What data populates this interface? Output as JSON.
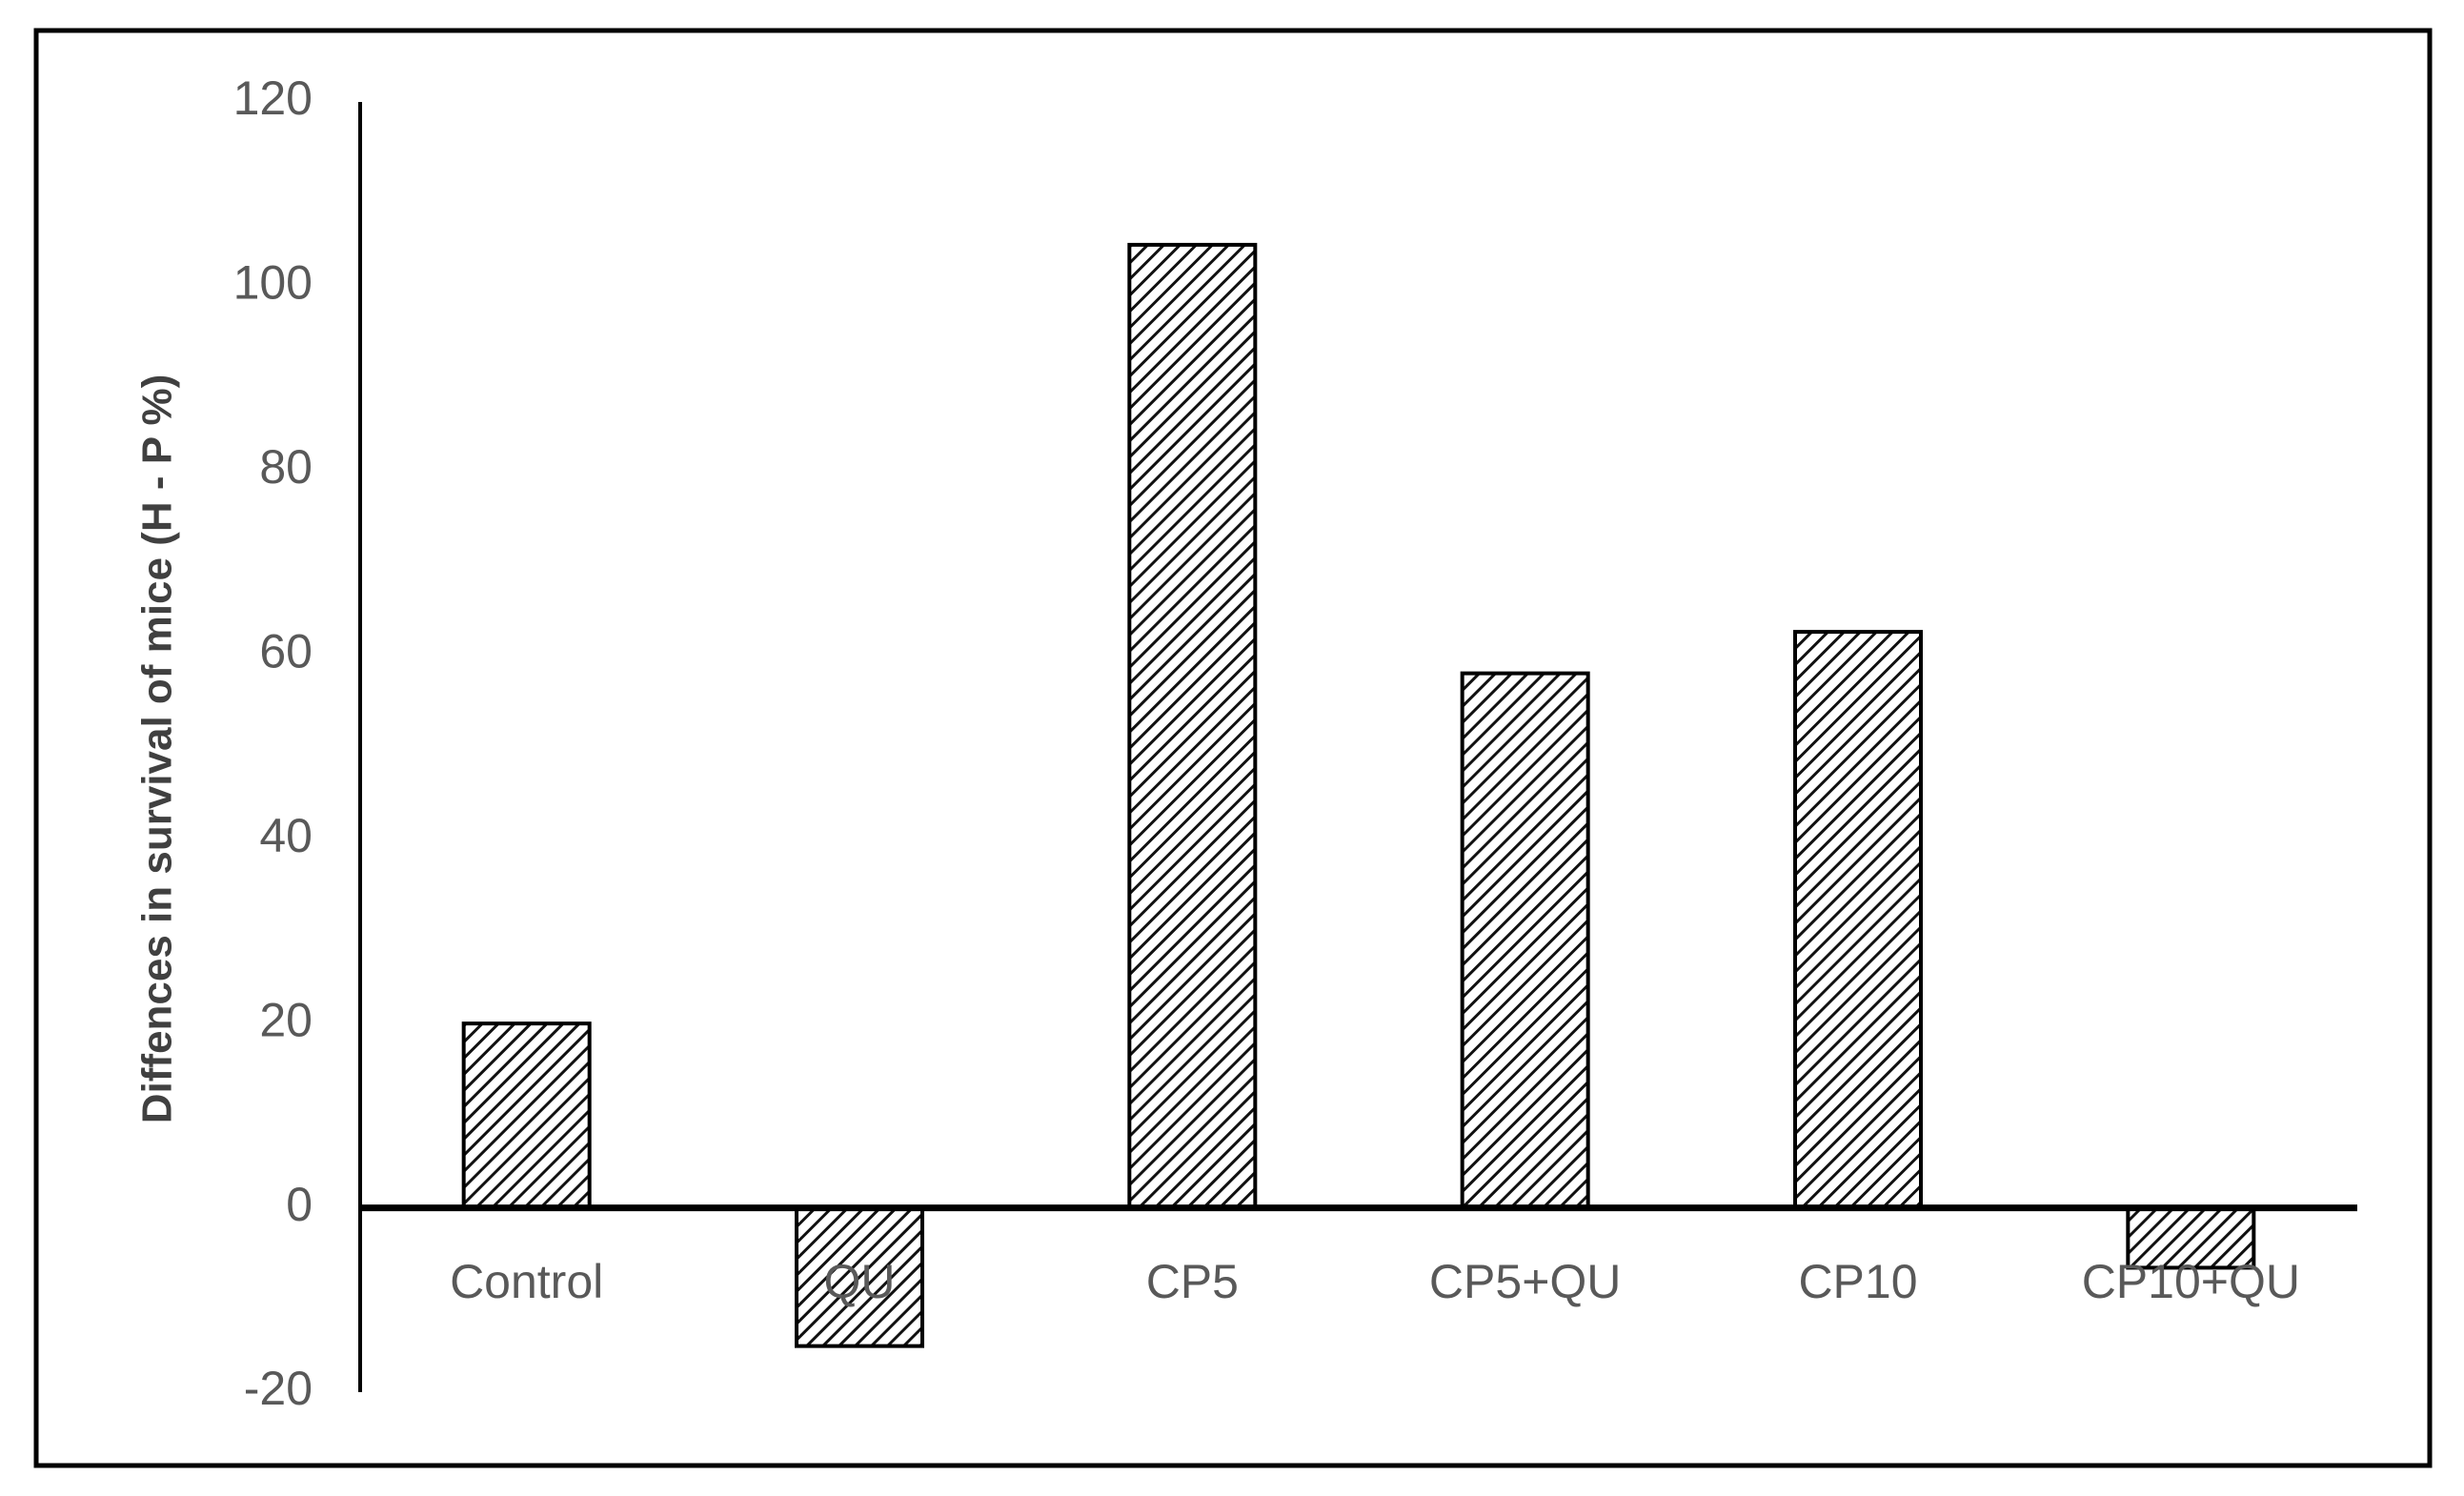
{
  "chart_data": {
    "type": "bar",
    "y_axis_label": "Diffences in survival of mice (H - P %)",
    "categories": [
      "Control",
      "QU",
      "CP5",
      "CP5+QU",
      "CP10",
      "CP10+QU"
    ],
    "values": [
      20,
      -15,
      104.5,
      58,
      62.5,
      -6.5
    ],
    "ylim": [
      -20,
      120
    ],
    "yticks": [
      -20,
      0,
      20,
      40,
      60,
      80,
      100,
      120
    ],
    "grid": false
  }
}
